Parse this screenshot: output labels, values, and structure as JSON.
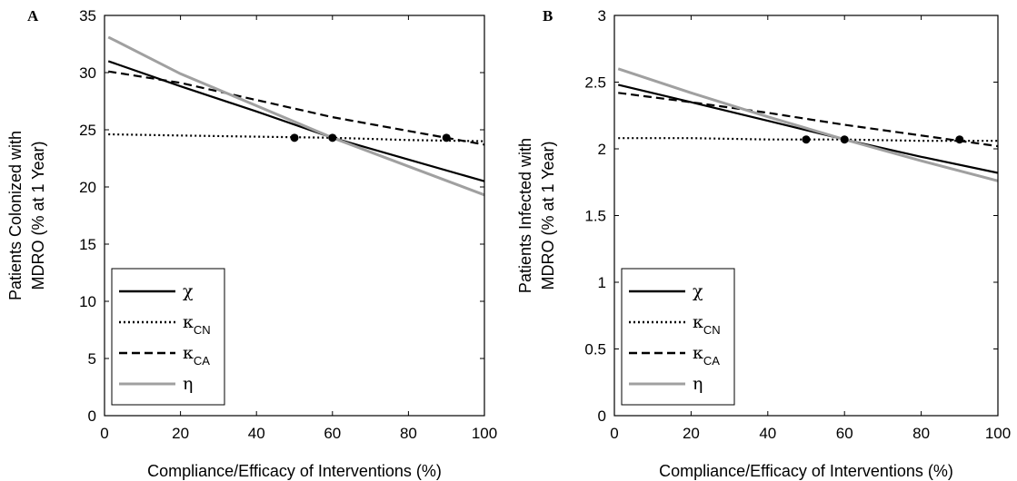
{
  "chart_data": [
    {
      "type": "line",
      "panel_label": "A",
      "xlabel": "Compliance/Efficacy of Interventions (%)",
      "ylabel_line1": "Patients Colonized with",
      "ylabel_line2": "MDRO (% at 1 Year)",
      "xlim": [
        0,
        100
      ],
      "ylim": [
        0,
        35
      ],
      "xticks": [
        0,
        20,
        40,
        60,
        80,
        100
      ],
      "yticks": [
        0,
        5,
        10,
        15,
        20,
        25,
        30,
        35
      ],
      "grid": false,
      "legend_position": "bottom-left",
      "series": [
        {
          "name": "χ",
          "sub": "",
          "style": "solid",
          "color": "#000000",
          "x": [
            1,
            20,
            40,
            60,
            80,
            100
          ],
          "y": [
            31.0,
            28.8,
            26.6,
            24.3,
            22.4,
            20.5
          ]
        },
        {
          "name": "κ",
          "sub": "CN",
          "style": "dotted",
          "color": "#000000",
          "x": [
            1,
            20,
            40,
            60,
            80,
            100
          ],
          "y": [
            24.6,
            24.5,
            24.4,
            24.3,
            24.1,
            24.0
          ]
        },
        {
          "name": "κ",
          "sub": "CA",
          "style": "dashed",
          "color": "#000000",
          "x": [
            1,
            20,
            40,
            60,
            80,
            100
          ],
          "y": [
            30.1,
            29.1,
            27.6,
            26.1,
            24.9,
            23.7
          ]
        },
        {
          "name": "η",
          "sub": "",
          "style": "solid",
          "color": "#a0a0a0",
          "x": [
            1,
            20,
            40,
            60,
            80,
            100
          ],
          "y": [
            33.1,
            29.9,
            27.1,
            24.3,
            21.8,
            19.3
          ]
        }
      ],
      "markers": [
        {
          "x": 50,
          "y": 24.3
        },
        {
          "x": 60,
          "y": 24.3
        },
        {
          "x": 90,
          "y": 24.3
        }
      ]
    },
    {
      "type": "line",
      "panel_label": "B",
      "xlabel": "Compliance/Efficacy of Interventions (%)",
      "ylabel_line1": "Patients Infected with",
      "ylabel_line2": "MDRO (% at 1 Year)",
      "xlim": [
        0,
        100
      ],
      "ylim": [
        0,
        3
      ],
      "xticks": [
        0,
        20,
        40,
        60,
        80,
        100
      ],
      "yticks": [
        0,
        0.5,
        1,
        1.5,
        2,
        2.5,
        3
      ],
      "grid": false,
      "legend_position": "bottom-left",
      "series": [
        {
          "name": "χ",
          "sub": "",
          "style": "solid",
          "color": "#000000",
          "x": [
            1,
            20,
            40,
            60,
            80,
            100
          ],
          "y": [
            2.48,
            2.35,
            2.21,
            2.07,
            1.94,
            1.82
          ]
        },
        {
          "name": "κ",
          "sub": "CN",
          "style": "dotted",
          "color": "#000000",
          "x": [
            1,
            20,
            40,
            60,
            80,
            100
          ],
          "y": [
            2.08,
            2.08,
            2.07,
            2.07,
            2.06,
            2.06
          ]
        },
        {
          "name": "κ",
          "sub": "CA",
          "style": "dashed",
          "color": "#000000",
          "x": [
            1,
            20,
            40,
            60,
            80,
            100
          ],
          "y": [
            2.42,
            2.35,
            2.27,
            2.18,
            2.1,
            2.02
          ]
        },
        {
          "name": "η",
          "sub": "",
          "style": "solid",
          "color": "#a0a0a0",
          "x": [
            1,
            20,
            40,
            60,
            80,
            100
          ],
          "y": [
            2.6,
            2.42,
            2.24,
            2.07,
            1.91,
            1.76
          ]
        }
      ],
      "markers": [
        {
          "x": 50,
          "y": 2.07
        },
        {
          "x": 60,
          "y": 2.07
        },
        {
          "x": 90,
          "y": 2.07
        }
      ]
    }
  ]
}
